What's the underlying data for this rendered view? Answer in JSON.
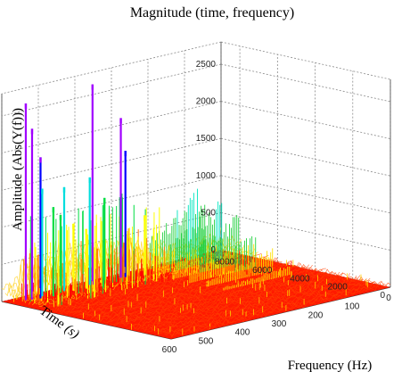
{
  "chart_data": {
    "type": "surface",
    "title": "Magnitude (time, frequency)",
    "zlabel": "Amplitude  (Abs(Y(f)))",
    "xlabel": "Frequency (Hz)",
    "ylabel_main": "Time ",
    "ylabel_unit": "(s)",
    "xlim": [
      0,
      600
    ],
    "ylim": [
      0,
      9000
    ],
    "zlim": [
      0,
      2800
    ],
    "z_ticks": [
      "0",
      "500",
      "1000",
      "1500",
      "2000",
      "2500"
    ],
    "time_ticks": [
      "0",
      "2000",
      "4000",
      "6000",
      "8000"
    ],
    "freq_ticks": [
      "0",
      "100",
      "200",
      "300",
      "400",
      "500",
      "600"
    ],
    "z_tick_values": [
      0,
      500,
      1000,
      1500,
      2000,
      2500
    ],
    "time_tick_values": [
      0,
      2000,
      4000,
      6000,
      8000
    ],
    "freq_tick_values": [
      0,
      100,
      200,
      300,
      400,
      500,
      600
    ],
    "grid": true,
    "colormap": [
      "#ff0000",
      "#ff8000",
      "#ffff00",
      "#00dd44",
      "#00dddd",
      "#0000ff",
      "#a000ff"
    ],
    "peaks": [
      {
        "frequency": 560,
        "time": 8500,
        "amplitude": 2650
      },
      {
        "frequency": 548,
        "time": 8400,
        "amplitude": 2300
      },
      {
        "frequency": 530,
        "time": 8300,
        "amplitude": 1900
      },
      {
        "frequency": 515,
        "time": 8500,
        "amplitude": 1450
      },
      {
        "frequency": 500,
        "time": 8200,
        "amplitude": 1200
      },
      {
        "frequency": 470,
        "time": 8400,
        "amplitude": 1050
      },
      {
        "frequency": 455,
        "time": 8500,
        "amplitude": 1400
      },
      {
        "frequency": 440,
        "time": 8300,
        "amplitude": 900
      },
      {
        "frequency": 410,
        "time": 8200,
        "amplitude": 800
      },
      {
        "frequency": 385,
        "time": 8500,
        "amplitude": 1450
      },
      {
        "frequency": 380,
        "time": 8450,
        "amplitude": 2700
      },
      {
        "frequency": 355,
        "time": 8300,
        "amplitude": 1150
      },
      {
        "frequency": 300,
        "time": 8500,
        "amplitude": 2150
      },
      {
        "frequency": 290,
        "time": 8450,
        "amplitude": 1700
      },
      {
        "frequency": 250,
        "time": 8200,
        "amplitude": 800
      }
    ],
    "harmonic_band": {
      "freq_min": 60,
      "freq_max": 240,
      "amplitude_start": 1050,
      "amplitude_end": 300
    }
  }
}
